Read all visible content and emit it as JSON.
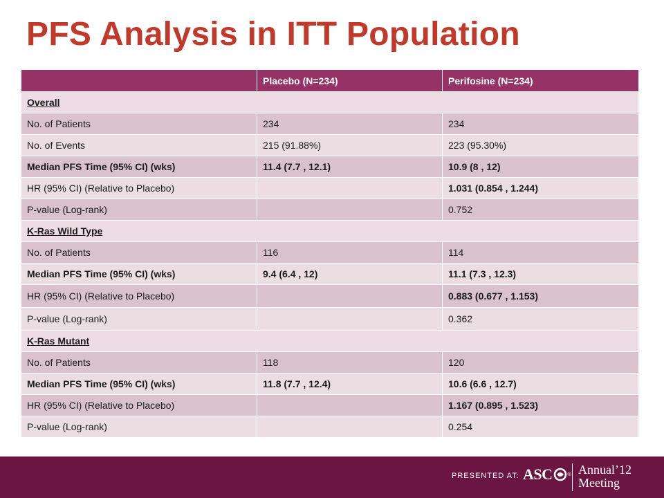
{
  "title": "PFS Analysis in ITT Population",
  "table": {
    "headers": [
      "",
      "Placebo (N=234)",
      "Perifosine (N=234)"
    ],
    "sections": [
      {
        "name": "Overall",
        "rows": [
          [
            "No. of Patients",
            "234",
            "234"
          ],
          [
            "No. of Events",
            "215 (91.88%)",
            "223 (95.30%)"
          ],
          [
            "Median PFS Time (95% CI) (wks)",
            "11.4 (7.7 , 12.1)",
            "10.9 (8 , 12)"
          ],
          [
            "HR (95% CI) (Relative to Placebo)",
            "",
            "1.031 (0.854 , 1.244)"
          ],
          [
            "P-value (Log-rank)",
            "",
            "0.752"
          ]
        ]
      },
      {
        "name": "K-Ras Wild Type",
        "rows": [
          [
            "No. of Patients",
            "116",
            "114"
          ],
          [
            "Median PFS Time (95% CI) (wks)",
            "9.4 (6.4 , 12)",
            "11.1 (7.3 , 12.3)"
          ],
          [
            "HR (95% CI) (Relative to Placebo)",
            "",
            "0.883 (0.677 , 1.153)"
          ],
          [
            "P-value (Log-rank)",
            "",
            "0.362"
          ]
        ]
      },
      {
        "name": "K-Ras Mutant",
        "rows": [
          [
            "No. of Patients",
            "118",
            "120"
          ],
          [
            "Median PFS Time (95% CI) (wks)",
            "11.8 (7.7 , 12.4)",
            "10.6 (6.6 , 12.7)"
          ],
          [
            "HR (95% CI) (Relative to Placebo)",
            "",
            "1.167 (0.895 , 1.523)"
          ],
          [
            "P-value (Log-rank)",
            "",
            "0.254"
          ]
        ]
      }
    ]
  },
  "footer": {
    "presented_at": "PRESENTED AT:",
    "asco": "ASC",
    "registered": "®",
    "annual": "Annual",
    "year": "’12",
    "meeting": "Meeting"
  },
  "colors": {
    "title": "#c0392b",
    "header_bg": "#973267",
    "row_dark": "#d9c2cc",
    "row_light": "#ecdde3",
    "footer_bg": "#6b1543"
  }
}
